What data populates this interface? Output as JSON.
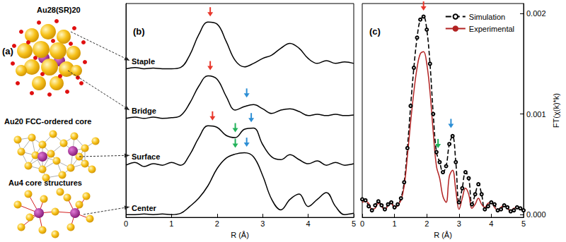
{
  "chart_data": [
    {
      "type": "line",
      "title": "(b)",
      "x_label": "R (Å)",
      "xlim": [
        0,
        5
      ],
      "xticks": [
        0,
        1,
        2,
        3,
        4,
        5
      ],
      "ylim": [
        0,
        100
      ],
      "tick_labels": "x",
      "grid": false,
      "x": [
        0,
        0.2,
        0.4,
        0.6,
        0.8,
        1,
        1.2,
        1.4,
        1.6,
        1.8,
        2,
        2.2,
        2.4,
        2.6,
        2.8,
        3,
        3.2,
        3.4,
        3.6,
        3.8,
        4,
        4.2,
        4.4,
        4.6,
        4.8,
        5
      ],
      "series": [
        {
          "name": "Staple",
          "color": "#000000",
          "values": [
            69.5,
            70.1,
            69.5,
            69.8,
            69.5,
            69.5,
            70.1,
            75.9,
            85.5,
            91.3,
            90.4,
            82.3,
            73.3,
            70.4,
            72.0,
            74.3,
            75.9,
            79.1,
            81.4,
            79.1,
            74.3,
            72.0,
            73.3,
            72.0,
            72.7,
            72.0
          ]
        },
        {
          "name": "Bridge",
          "color": "#000000",
          "values": [
            46.3,
            46.9,
            46.3,
            46.9,
            46.3,
            46.6,
            47.6,
            53.4,
            61.4,
            66.2,
            64.6,
            56.6,
            50.2,
            51.8,
            52.7,
            50.8,
            48.6,
            50.2,
            50.8,
            49.5,
            47.6,
            48.2,
            47.6,
            48.2,
            47.6,
            47.9
          ]
        },
        {
          "name": "Surface",
          "color": "#000000",
          "values": [
            24.4,
            25.7,
            23.8,
            25.1,
            24.4,
            25.7,
            24.4,
            29.3,
            37.3,
            42.8,
            42.1,
            38.3,
            37.3,
            41.2,
            41.8,
            34.1,
            28.3,
            27.0,
            29.3,
            27.0,
            25.1,
            26.4,
            24.4,
            25.7,
            24.4,
            25.1
          ]
        },
        {
          "name": "Center",
          "color": "#000000",
          "values": [
            1.3,
            1.3,
            1.6,
            1.3,
            1.6,
            1.3,
            1.9,
            5.1,
            9.0,
            14.8,
            22.8,
            27.7,
            29.6,
            30.2,
            28.3,
            19.6,
            8.4,
            3.5,
            8.4,
            10.9,
            5.1,
            8.4,
            11.6,
            5.1,
            1.3,
            1.9
          ]
        }
      ],
      "arrows": [
        {
          "x": 1.85,
          "y": 94,
          "color": "#e8382c"
        },
        {
          "x": 1.85,
          "y": 68.8,
          "color": "#e8382c"
        },
        {
          "x": 2.65,
          "y": 56,
          "color": "#2d8fd5"
        },
        {
          "x": 1.9,
          "y": 45.3,
          "color": "#e8382c"
        },
        {
          "x": 2.4,
          "y": 39.8,
          "color": "#23b25a"
        },
        {
          "x": 2.75,
          "y": 44.5,
          "color": "#2d8fd5"
        },
        {
          "x": 2.4,
          "y": 32.5,
          "color": "#23b25a"
        },
        {
          "x": 2.65,
          "y": 33,
          "color": "#2d8fd5"
        }
      ]
    },
    {
      "type": "line",
      "title": "(c)",
      "x_label": "R (Å)",
      "y_label": "FT(χ(k)*k)",
      "xlim": [
        0,
        5
      ],
      "xticks": [
        0,
        1,
        2,
        3,
        4,
        5
      ],
      "ylim": [
        -3e-05,
        0.0021
      ],
      "yticks": [
        {
          "value": 0,
          "label": "0.000"
        },
        {
          "value": 0.001,
          "label": "0.001"
        },
        {
          "value": 0.002,
          "label": "0.002"
        }
      ],
      "grid": false,
      "legend": "upper right",
      "x": [
        0,
        0.1,
        0.2,
        0.3,
        0.4,
        0.5,
        0.6,
        0.7,
        0.8,
        0.9,
        1,
        1.1,
        1.2,
        1.3,
        1.4,
        1.5,
        1.6,
        1.7,
        1.8,
        1.9,
        2,
        2.1,
        2.2,
        2.3,
        2.4,
        2.5,
        2.6,
        2.7,
        2.8,
        2.9,
        3,
        3.1,
        3.2,
        3.3,
        3.4,
        3.5,
        3.6,
        3.7,
        3.8,
        3.9,
        4,
        4.1,
        4.2,
        4.3,
        4.4,
        4.5,
        4.6,
        4.7,
        4.8,
        4.9,
        5
      ],
      "series": [
        {
          "name": "Simulation",
          "color": "#000000",
          "marker": "circle",
          "line_style": "dashed",
          "values": [
            0.00015,
            0.00014,
            8e-05,
            4e-05,
            9e-05,
            0.00013,
            9e-05,
            5e-05,
            0.0001,
            0.00012,
            7e-05,
            0.0001,
            0.00016,
            0.00032,
            0.00066,
            0.00108,
            0.00146,
            0.00176,
            0.00194,
            0.00197,
            0.00184,
            0.0015,
            0.001,
            0.00062,
            0.00052,
            0.00042,
            0.00048,
            0.0007,
            0.00078,
            0.00052,
            0.00012,
            0.00026,
            0.00042,
            0.00036,
            0.0001,
            0.0002,
            0.0003,
            0.0002,
            5e-05,
            8e-05,
            0.00012,
            0.0001,
            4e-05,
            5e-05,
            9e-05,
            7e-05,
            3e-05,
            4e-05,
            7e-05,
            6e-05,
            4e-05
          ]
        },
        {
          "name": "Experimental",
          "color": "#b22222",
          "line_style": "solid",
          "values": [
            0.00012,
            0.00013,
            0.00011,
            5e-05,
            6e-05,
            0.00011,
            8e-05,
            4e-05,
            9e-05,
            0.00011,
            6e-05,
            9e-05,
            0.00014,
            0.00028,
            0.00058,
            0.00092,
            0.00122,
            0.00146,
            0.0016,
            0.00162,
            0.0015,
            0.00122,
            0.00082,
            0.00048,
            0.00036,
            0.00018,
            0.00012,
            0.00038,
            0.00044,
            0.00024,
            5e-05,
            0.00016,
            0.00026,
            0.0002,
            6e-05,
            0.0001,
            0.00016,
            0.0001,
            7e-05,
            0.00011,
            0.00012,
            7e-05,
            4e-05,
            7e-05,
            9e-05,
            6e-05,
            4e-05,
            6e-05,
            7e-05,
            5e-05,
            4e-05
          ]
        }
      ],
      "arrows": [
        {
          "x": 1.9,
          "y": 0.00203,
          "color": "#e8382c"
        },
        {
          "x": 2.35,
          "y": 0.00066,
          "color": "#23b25a"
        },
        {
          "x": 2.75,
          "y": 0.00086,
          "color": "#2d8fd5"
        }
      ]
    }
  ],
  "diagram": {
    "label": "(a)",
    "structures": [
      {
        "label": "Au28(SR)20"
      },
      {
        "label": "Au20 FCC-ordered core"
      },
      {
        "label": "Au4 core structures"
      }
    ]
  }
}
